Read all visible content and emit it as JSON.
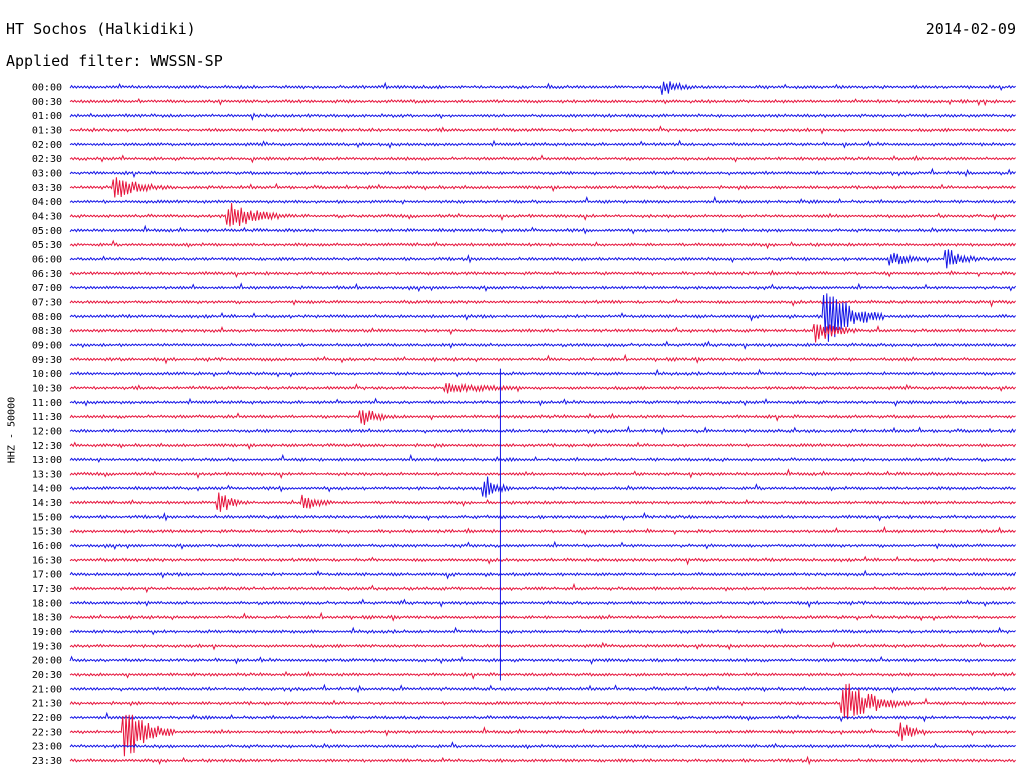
{
  "header": {
    "station": "HT Sochos (Halkidiki)",
    "date": "2014-02-09",
    "filter": "Applied filter: WWSSN-SP"
  },
  "channel_label": "HHZ - 50000",
  "colors": {
    "blue": "#1414e6",
    "red": "#e6143c"
  },
  "chart_data": {
    "type": "line",
    "title": "HT Sochos (Halkidiki)",
    "ylabel": "HHZ - 50000",
    "rows": [
      "00:00",
      "00:30",
      "01:00",
      "01:30",
      "02:00",
      "02:30",
      "03:00",
      "03:30",
      "04:00",
      "04:30",
      "05:00",
      "05:30",
      "06:00",
      "06:30",
      "07:00",
      "07:30",
      "08:00",
      "08:30",
      "09:00",
      "09:30",
      "10:00",
      "10:30",
      "11:00",
      "11:30",
      "12:00",
      "12:30",
      "13:00",
      "13:30",
      "14:00",
      "14:30",
      "15:00",
      "15:30",
      "16:00",
      "16:30",
      "17:00",
      "17:30",
      "18:00",
      "18:30",
      "19:00",
      "19:30",
      "20:00",
      "20:30",
      "21:00",
      "21:30",
      "22:00",
      "22:30",
      "23:00",
      "23:30"
    ],
    "row_colors": [
      "blue",
      "red"
    ],
    "events": [
      {
        "row": "00:00",
        "x": 0.63,
        "amp": 8,
        "dur": 0.04
      },
      {
        "row": "03:30",
        "x": 0.05,
        "amp": 12,
        "dur": 0.06
      },
      {
        "row": "04:30",
        "x": 0.17,
        "amp": 14,
        "dur": 0.07
      },
      {
        "row": "06:00",
        "x": 0.87,
        "amp": 8,
        "dur": 0.05
      },
      {
        "row": "06:00",
        "x": 0.93,
        "amp": 10,
        "dur": 0.04
      },
      {
        "row": "08:00",
        "x": 0.8,
        "amp": 30,
        "dur": 0.06
      },
      {
        "row": "08:30",
        "x": 0.79,
        "amp": 12,
        "dur": 0.05
      },
      {
        "row": "10:30",
        "x": 0.4,
        "amp": 6,
        "dur": 0.12
      },
      {
        "row": "11:30",
        "x": 0.31,
        "amp": 10,
        "dur": 0.04
      },
      {
        "row": "14:00",
        "x": 0.44,
        "amp": 14,
        "dur": 0.03
      },
      {
        "row": "14:30",
        "x": 0.16,
        "amp": 12,
        "dur": 0.03
      },
      {
        "row": "14:30",
        "x": 0.25,
        "amp": 9,
        "dur": 0.04
      },
      {
        "row": "21:30",
        "x": 0.82,
        "amp": 22,
        "dur": 0.07
      },
      {
        "row": "22:30",
        "x": 0.06,
        "amp": 30,
        "dur": 0.05
      },
      {
        "row": "22:30",
        "x": 0.88,
        "amp": 10,
        "dur": 0.03
      }
    ]
  }
}
